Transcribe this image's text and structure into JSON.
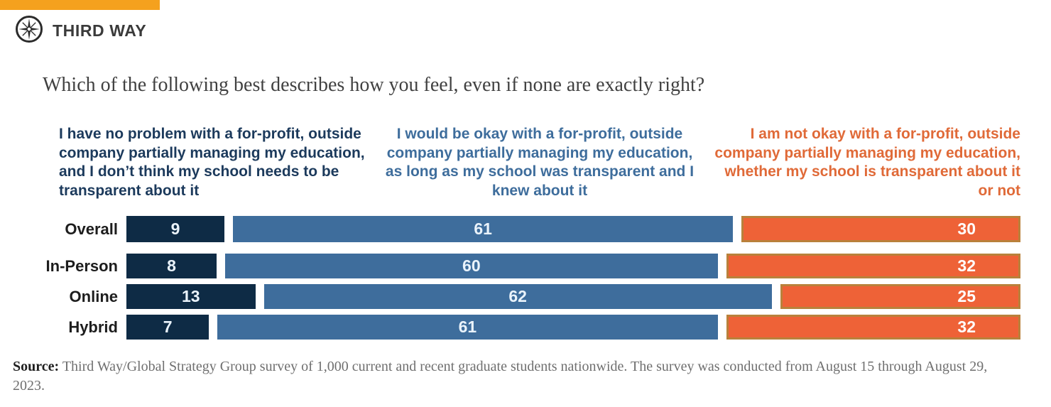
{
  "brand": {
    "name": "THIRD WAY"
  },
  "question": "Which of the following best describes how you feel, even if none are exactly right?",
  "chart_data": {
    "type": "bar",
    "variant": "stacked-100",
    "orientation": "horizontal",
    "unit": "percent",
    "title": "Which of the following best describes how you feel, even if none are exactly right?",
    "legend_position": "top",
    "xlim": [
      0,
      100
    ],
    "grid": false,
    "categories": [
      "Overall",
      "In-Person",
      "Online",
      "Hybrid"
    ],
    "series": [
      {
        "name": "I have no problem with a for-profit, outside company partially managing my education, and I don’t think my school needs to be transparent about it",
        "color": "#0e2b45",
        "values": [
          9,
          8,
          13,
          7
        ]
      },
      {
        "name": "I would be okay with a for-profit, outside company partially managing my education, as long as my school was transparent and I knew about it",
        "color": "#3e6d9c",
        "values": [
          61,
          60,
          62,
          61
        ]
      },
      {
        "name": "I am not okay with a for-profit, outside company partially managing my education, whether my school is transparent about it or not",
        "color": "#ee6237",
        "values": [
          30,
          32,
          25,
          32
        ]
      }
    ]
  },
  "source": {
    "label": "Source:",
    "text": " Third Way/Global Strategy Group survey of 1,000 current and recent graduate students nationwide. The survey was conducted from August 15 through August 29, 2023."
  },
  "colors": {
    "top_accent": "#F5A11E",
    "header_1": "#1c3a5c",
    "header_2": "#3e6d9c",
    "header_3": "#e06a38",
    "orange_border": "#b9813b",
    "value_text": "#eaf3fb"
  }
}
